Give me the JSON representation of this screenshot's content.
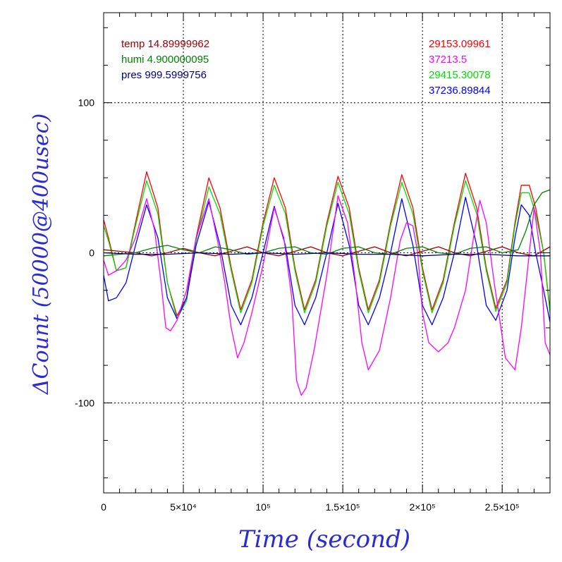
{
  "chart_data": {
    "type": "line",
    "xlabel": "Time (second)",
    "ylabel": "ΔCount (50000@400usec)",
    "xlim": [
      0,
      280000
    ],
    "ylim": [
      -160,
      160
    ],
    "grid": true,
    "x_ticks": [
      {
        "value": 0,
        "label": "0"
      },
      {
        "value": 50000,
        "label": "5×10⁴"
      },
      {
        "value": 100000,
        "label": "10⁵"
      },
      {
        "value": 150000,
        "label": "1.5×10⁵"
      },
      {
        "value": 200000,
        "label": "2×10⁵"
      },
      {
        "value": 250000,
        "label": "2.5×10⁵"
      }
    ],
    "y_ticks": [
      {
        "value": 100,
        "label": "100"
      },
      {
        "value": 0,
        "label": "0"
      },
      {
        "value": -100,
        "label": "-100"
      }
    ],
    "legend_left": [
      {
        "text": "temp 14.89999962",
        "color": "#a00000"
      },
      {
        "text": "humi 4.900000095",
        "color": "#008000"
      },
      {
        "text": "pres 999.5999756",
        "color": "#000080"
      }
    ],
    "legend_right": [
      {
        "text": "29153.09961",
        "color": "#ff0000"
      },
      {
        "text": "37213.5",
        "color": "#ff00ff"
      },
      {
        "text": "29415.30078",
        "color": "#00dd00"
      },
      {
        "text": "37236.89844",
        "color": "#0000ff"
      }
    ],
    "series": [
      {
        "label": "29153.09961",
        "color": "#ff0000",
        "x": [
          0,
          3000,
          8000,
          14000,
          20000,
          27000,
          34000,
          40000,
          46000,
          52000,
          58000,
          66000,
          73000,
          80000,
          86000,
          93000,
          100000,
          107000,
          114000,
          120000,
          126000,
          133000,
          140000,
          147000,
          154000,
          160000,
          166000,
          173000,
          180000,
          187000,
          194000,
          200000,
          206000,
          213000,
          220000,
          227000,
          234000,
          240000,
          246000,
          253000,
          258000,
          262000,
          267000,
          271000,
          276000,
          280000
        ],
        "y": [
          22,
          10,
          -12,
          -10,
          20,
          54,
          30,
          -20,
          -42,
          -30,
          10,
          50,
          30,
          -10,
          -38,
          -18,
          20,
          50,
          30,
          -10,
          -38,
          -18,
          20,
          51,
          30,
          -10,
          -38,
          -18,
          20,
          52,
          30,
          -10,
          -38,
          -18,
          20,
          53,
          30,
          -10,
          -37,
          -18,
          20,
          45,
          45,
          30,
          0,
          -38
        ]
      },
      {
        "label": "29415.30078",
        "color": "#00dd00",
        "x": [
          0,
          3000,
          8000,
          14000,
          20000,
          27000,
          34000,
          40000,
          46000,
          52000,
          58000,
          66000,
          73000,
          80000,
          86000,
          93000,
          100000,
          107000,
          114000,
          120000,
          126000,
          133000,
          140000,
          147000,
          154000,
          160000,
          166000,
          173000,
          180000,
          187000,
          194000,
          200000,
          206000,
          213000,
          220000,
          227000,
          234000,
          240000,
          246000,
          253000,
          258000,
          262000,
          267000,
          271000,
          276000,
          280000
        ],
        "y": [
          18,
          8,
          -12,
          -10,
          18,
          48,
          26,
          -20,
          -44,
          -32,
          8,
          44,
          26,
          -12,
          -40,
          -20,
          18,
          45,
          26,
          -12,
          -40,
          -20,
          18,
          47,
          26,
          -12,
          -40,
          -20,
          18,
          47,
          26,
          -12,
          -40,
          -20,
          18,
          48,
          26,
          -12,
          -39,
          -20,
          18,
          40,
          40,
          26,
          0,
          -40
        ]
      },
      {
        "label": "37236.89844",
        "color": "#0000ff",
        "x": [
          0,
          3000,
          8000,
          14000,
          20000,
          27000,
          34000,
          40000,
          46000,
          52000,
          58000,
          66000,
          73000,
          80000,
          86000,
          93000,
          100000,
          107000,
          114000,
          120000,
          126000,
          133000,
          140000,
          147000,
          154000,
          160000,
          166000,
          173000,
          180000,
          187000,
          194000,
          200000,
          206000,
          213000,
          220000,
          227000,
          234000,
          240000,
          246000,
          253000,
          258000,
          262000,
          267000,
          271000,
          276000,
          280000
        ],
        "y": [
          -15,
          -32,
          -30,
          -20,
          5,
          32,
          10,
          -30,
          -44,
          -30,
          5,
          34,
          5,
          -35,
          -48,
          -30,
          0,
          31,
          5,
          -35,
          -48,
          -30,
          0,
          33,
          5,
          -35,
          -48,
          -30,
          0,
          36,
          5,
          -35,
          -48,
          -30,
          0,
          37,
          5,
          -35,
          -45,
          -25,
          10,
          32,
          25,
          0,
          -25,
          -46
        ]
      },
      {
        "label": "37213.5",
        "color": "#ff00ff",
        "x": [
          0,
          3000,
          8000,
          14000,
          20000,
          27000,
          32000,
          36000,
          39000,
          42000,
          46000,
          52000,
          58000,
          66000,
          72000,
          76000,
          80000,
          84000,
          88000,
          93000,
          100000,
          107000,
          113000,
          118000,
          121000,
          124000,
          127000,
          132000,
          140000,
          147000,
          153000,
          158000,
          162000,
          166000,
          173000,
          180000,
          186000,
          190000,
          194000,
          197000,
          200000,
          204000,
          210000,
          216000,
          220000,
          227000,
          232000,
          236000,
          240000,
          245000,
          252000,
          258000,
          262000,
          266000,
          270000,
          274000,
          277000,
          280000
        ],
        "y": [
          -5,
          -15,
          -12,
          -5,
          10,
          36,
          15,
          -20,
          -50,
          -52,
          -45,
          -25,
          10,
          36,
          5,
          -20,
          -50,
          -70,
          -60,
          -40,
          -8,
          30,
          10,
          -30,
          -85,
          -95,
          -90,
          -65,
          -15,
          38,
          20,
          -20,
          -60,
          -78,
          -65,
          -30,
          8,
          20,
          18,
          0,
          -40,
          -60,
          -66,
          -60,
          -50,
          -25,
          10,
          35,
          20,
          -20,
          -70,
          -78,
          -50,
          -10,
          30,
          0,
          -60,
          -68
        ]
      },
      {
        "label": "temp 14.89999962",
        "color": "#a00000",
        "x": [
          0,
          10000,
          20000,
          30000,
          40000,
          50000,
          60000,
          70000,
          80000,
          90000,
          100000,
          110000,
          120000,
          130000,
          140000,
          150000,
          160000,
          170000,
          180000,
          190000,
          200000,
          210000,
          220000,
          230000,
          240000,
          250000,
          260000,
          270000,
          280000
        ],
        "y": [
          2,
          1,
          0,
          -2,
          0,
          3,
          0,
          -2,
          1,
          4,
          0,
          -2,
          1,
          4,
          0,
          -2,
          1,
          4,
          0,
          -2,
          1,
          4,
          0,
          -2,
          1,
          4,
          0,
          -2,
          4
        ]
      },
      {
        "label": "humi 4.900000095",
        "color": "#008000",
        "x": [
          0,
          10000,
          20000,
          30000,
          40000,
          50000,
          60000,
          70000,
          80000,
          90000,
          100000,
          110000,
          120000,
          130000,
          140000,
          150000,
          160000,
          170000,
          180000,
          190000,
          200000,
          210000,
          220000,
          230000,
          240000,
          250000,
          260000,
          265000,
          270000,
          275000,
          280000
        ],
        "y": [
          -2,
          -1,
          0,
          3,
          5,
          2,
          0,
          4,
          2,
          -1,
          0,
          3,
          4,
          0,
          -1,
          3,
          4,
          0,
          -1,
          3,
          4,
          0,
          -1,
          3,
          4,
          0,
          2,
          15,
          32,
          40,
          42
        ]
      },
      {
        "label": "pres 999.5999756",
        "color": "#000080",
        "x": [
          0,
          20000,
          40000,
          60000,
          80000,
          100000,
          120000,
          140000,
          160000,
          180000,
          200000,
          220000,
          240000,
          260000,
          280000
        ],
        "y": [
          0,
          -1,
          -1,
          0,
          -1,
          0,
          -1,
          0,
          -1,
          -1,
          -2,
          -1,
          -1,
          -2,
          -2
        ]
      }
    ]
  }
}
